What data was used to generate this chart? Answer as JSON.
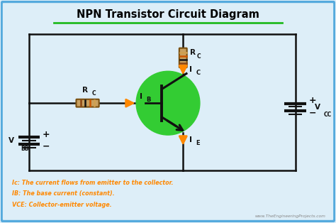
{
  "title": "NPN Transistor Circuit Diagram",
  "title_color": "#000000",
  "title_underline_color": "#22bb22",
  "bg_color": "#ddeef8",
  "border_color": "#55aadd",
  "orange": "#FF8800",
  "green": "#22bb22",
  "transistor_green": "#33cc33",
  "dark": "#111111",
  "legend_color": "#FF8800",
  "legend_texts": [
    "Ic: The current flows from emitter to the collector.",
    "IB: The base current (constant).",
    "VCE: Collector-emitter voltage."
  ],
  "watermark": "www.TheEngineeringProjects.com",
  "resistor_body": "#c8a060",
  "resistor_edge": "#7a5010"
}
